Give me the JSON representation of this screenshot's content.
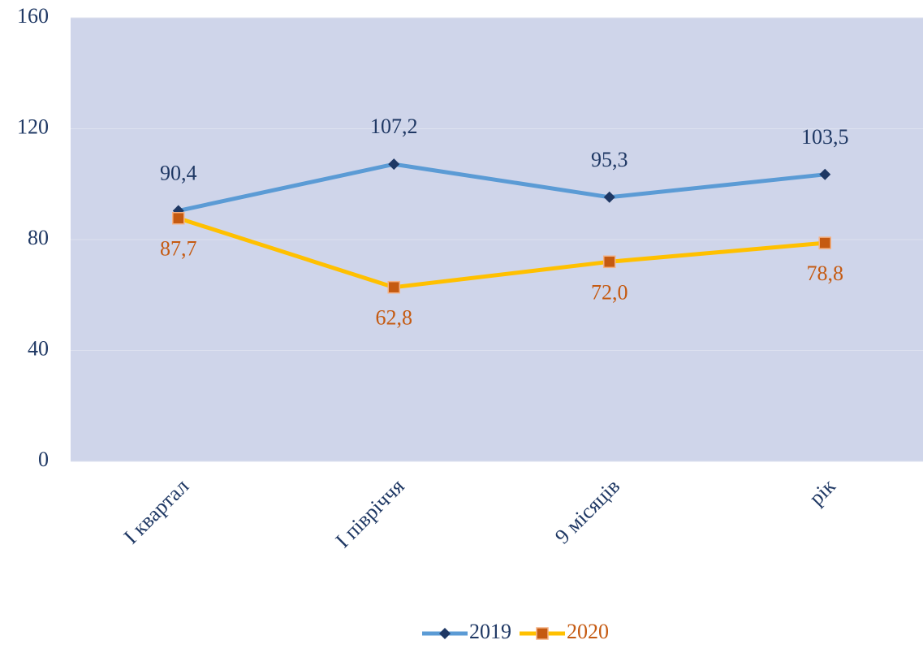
{
  "chart_data": {
    "type": "line",
    "categories": [
      "I квартал",
      "I півріччя",
      "9 місяців",
      "рік"
    ],
    "series": [
      {
        "name": "2019",
        "color": "#5b9bd5",
        "marker_color": "#1f3864",
        "label_color": "#1f3864",
        "marker": "diamond",
        "values": [
          90.4,
          107.2,
          95.3,
          103.5
        ],
        "value_labels": [
          "90,4",
          "107,2",
          "95,3",
          "103,5"
        ]
      },
      {
        "name": "2020",
        "color": "#ffc000",
        "marker_color": "#c55a11",
        "label_color": "#c55a11",
        "marker": "square",
        "values": [
          87.7,
          62.8,
          72.0,
          78.8
        ],
        "value_labels": [
          "87,7",
          "62,8",
          "72,0",
          "78,8"
        ]
      }
    ],
    "ylim": [
      0,
      160
    ],
    "yticks": [
      0,
      40,
      80,
      120,
      160
    ],
    "grid": true,
    "plot_background": "#cfd5ea",
    "legend": "bottom"
  }
}
